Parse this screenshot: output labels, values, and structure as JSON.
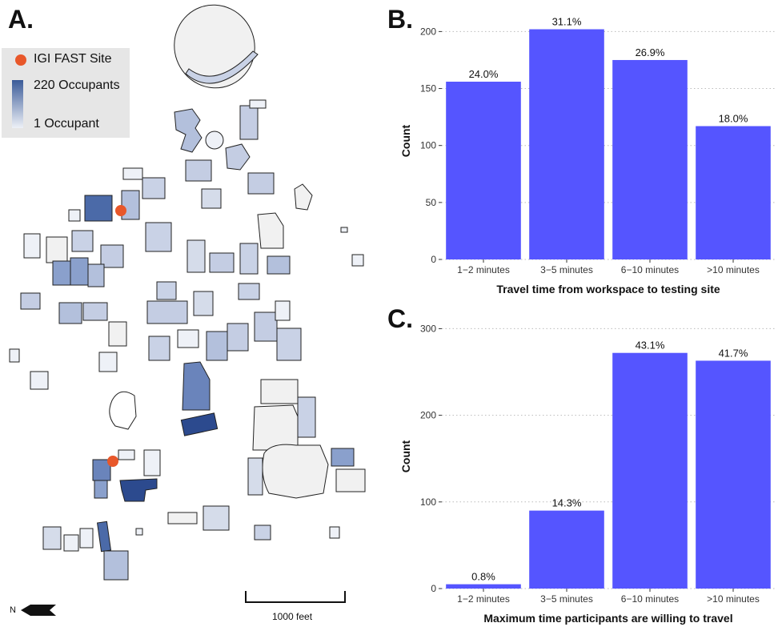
{
  "panels": {
    "a": "A.",
    "b": "B.",
    "c": "C."
  },
  "map": {
    "legend": {
      "site_label": "IGI FAST Site",
      "max_label": "220 Occupants",
      "min_label": "1 Occupant",
      "colors": {
        "site": "#e8572a",
        "max": "#3a5a98",
        "min": "#eef1f7"
      }
    },
    "scale_label": "1000 feet",
    "north_label": "N"
  },
  "chart_data": [
    {
      "type": "bar",
      "panel": "B.",
      "categories": [
        "1−2 minutes",
        "3−5 minutes",
        "6−10 minutes",
        ">10 minutes"
      ],
      "values": [
        156,
        202,
        175,
        117
      ],
      "labels": [
        "24.0%",
        "31.1%",
        "26.9%",
        "18.0%"
      ],
      "xlabel": "Travel time from workspace to testing site",
      "ylabel": "Count",
      "ylim": [
        0,
        208
      ],
      "yticks": [
        0,
        50,
        100,
        150,
        200
      ],
      "grid": true,
      "color": "#5555ff"
    },
    {
      "type": "bar",
      "panel": "C.",
      "categories": [
        "1−2 minutes",
        "3−5 minutes",
        "6−10 minutes",
        ">10 minutes"
      ],
      "values": [
        5,
        90,
        272,
        263
      ],
      "labels": [
        "0.8%",
        "14.3%",
        "43.1%",
        "41.7%"
      ],
      "xlabel": "Maximum time participants are willing to travel",
      "ylabel": "Count",
      "ylim": [
        0,
        305
      ],
      "yticks": [
        0,
        100,
        200,
        300
      ],
      "grid": true,
      "color": "#5555ff"
    }
  ]
}
